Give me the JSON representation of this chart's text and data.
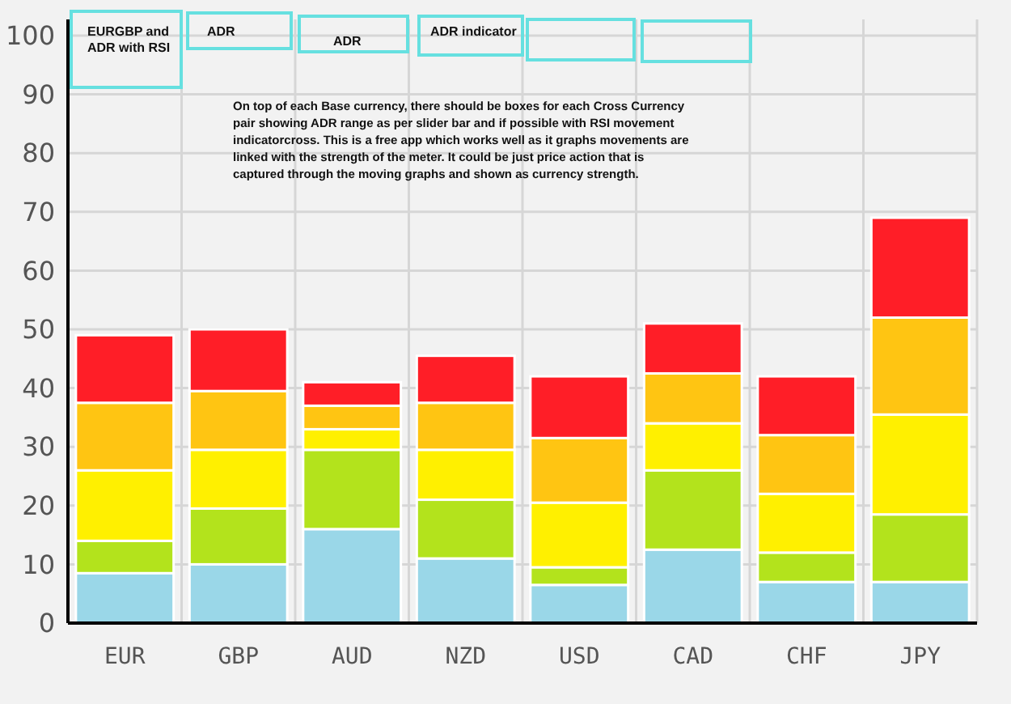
{
  "chart_data": {
    "type": "bar",
    "stacked": true,
    "categories": [
      "EUR",
      "GBP",
      "AUD",
      "NZD",
      "USD",
      "CAD",
      "CHF",
      "JPY"
    ],
    "series": [
      {
        "color": "#9ad7e8",
        "values": [
          8.5,
          10,
          16,
          11,
          6.5,
          12.5,
          7,
          7
        ]
      },
      {
        "color": "#b3e31c",
        "values": [
          5.5,
          9.5,
          13.5,
          10,
          3,
          13.5,
          5,
          11.5
        ]
      },
      {
        "color": "#fff000",
        "values": [
          12,
          10,
          3.5,
          8.5,
          11,
          8,
          10,
          17
        ]
      },
      {
        "color": "#ffc512",
        "values": [
          11.5,
          10,
          4,
          8,
          11,
          8.5,
          10,
          16.5
        ]
      },
      {
        "color": "#ff1e27",
        "values": [
          11.5,
          10.5,
          4,
          8,
          10.5,
          8.5,
          10,
          17
        ]
      }
    ],
    "ylim": [
      0,
      100
    ],
    "yticks": [
      0,
      10,
      20,
      30,
      40,
      50,
      60,
      70,
      80,
      90,
      100
    ],
    "grid": true,
    "annotations": [
      "EURGBP and ADR with RSI",
      "ADR",
      "ADR",
      "ADR indicator",
      "On top of each Base currency, there should be boxes for each Cross Currency pair showing  ADR range as per slider bar and if possible with  RSI movement indicatorcross. This is a free app which works well as it graphs movements are linked with the strength of the meter. It could be just price action that is captured through the moving graphs and shown as currency strength."
    ]
  }
}
